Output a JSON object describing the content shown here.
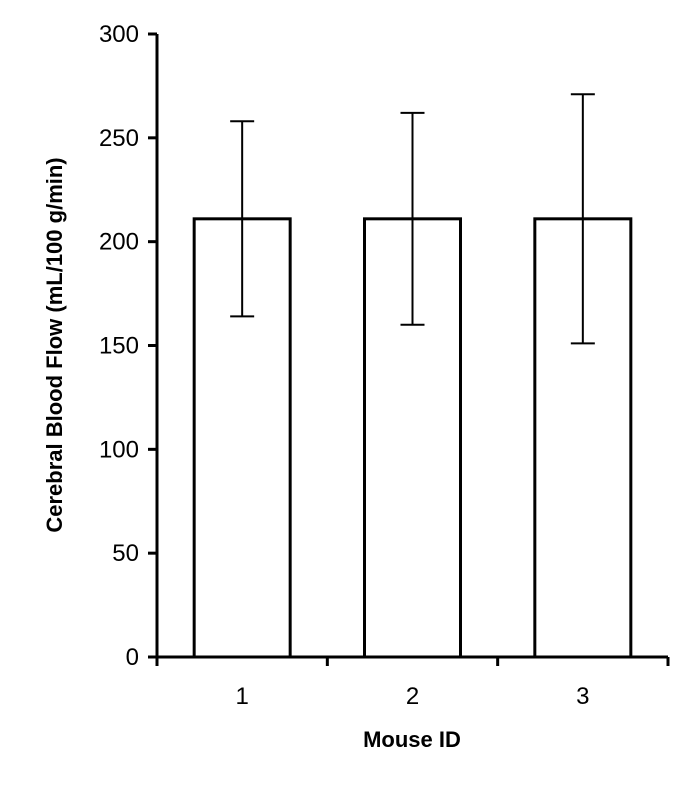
{
  "chart_data": {
    "type": "bar",
    "title": "",
    "xlabel": "Mouse ID",
    "ylabel": "Cerebral Blood Flow (mL/100 g/min)",
    "ylim": [
      0,
      300
    ],
    "yticks": [
      "0",
      "50",
      "100",
      "150",
      "200",
      "250",
      "300"
    ],
    "categories": [
      "1",
      "2",
      "3"
    ],
    "values": [
      211,
      211,
      211
    ],
    "error_low": [
      164,
      160,
      151
    ],
    "error_high": [
      258,
      262,
      271
    ],
    "grid": false,
    "legend": "none",
    "colors": {
      "bar_fill": "#ffffff",
      "bar_stroke": "#000000",
      "axis": "#000000"
    }
  }
}
